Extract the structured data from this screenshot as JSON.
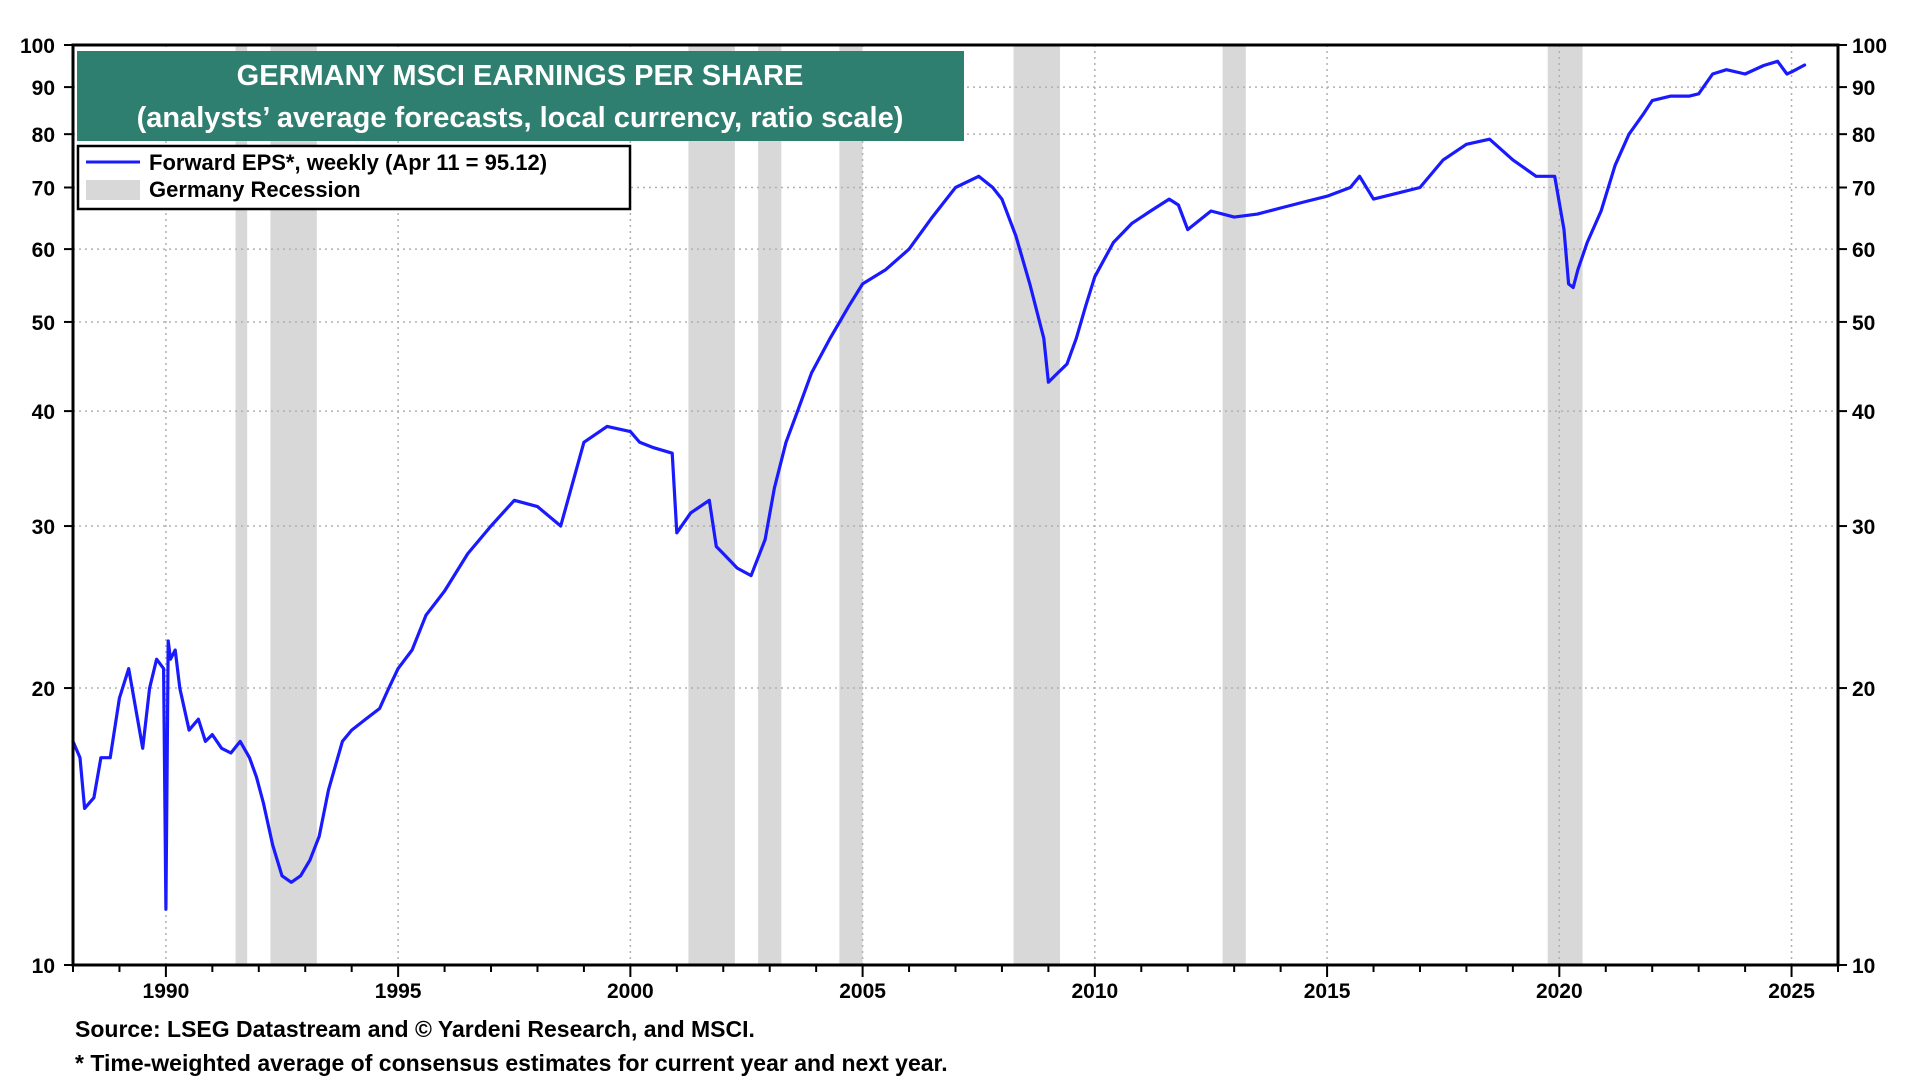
{
  "chart_data": {
    "type": "line",
    "title": "GERMANY MSCI EARNINGS PER SHARE",
    "subtitle": "(analysts’ average forecasts, local currency, ratio scale)",
    "xlabel": "",
    "ylabel": "",
    "yscale": "log",
    "ylim": [
      10,
      100
    ],
    "xlim": [
      1988.0,
      2026.0
    ],
    "grid": true,
    "legend_position": "top-left",
    "y_ticks": [
      "10",
      "20",
      "30",
      "40",
      "50",
      "60",
      "70",
      "80",
      "90",
      "100"
    ],
    "x_ticks": [
      "1990",
      "1995",
      "2000",
      "2005",
      "2010",
      "2015",
      "2020",
      "2025"
    ],
    "series": [
      {
        "name": "Forward EPS*, weekly (Apr 11 = 95.12)",
        "color": "#1a1aff",
        "x": [
          1988.0,
          1988.15,
          1988.25,
          1988.45,
          1988.6,
          1988.8,
          1989.0,
          1989.2,
          1989.35,
          1989.5,
          1989.65,
          1989.8,
          1989.95,
          1990.0,
          1990.05,
          1990.1,
          1990.2,
          1990.3,
          1990.5,
          1990.7,
          1990.85,
          1991.0,
          1991.2,
          1991.4,
          1991.6,
          1991.8,
          1991.95,
          1992.1,
          1992.3,
          1992.5,
          1992.7,
          1992.9,
          1993.1,
          1993.3,
          1993.5,
          1993.8,
          1994.0,
          1994.3,
          1994.6,
          1994.8,
          1995.0,
          1995.3,
          1995.6,
          1996.0,
          1996.5,
          1997.0,
          1997.5,
          1998.0,
          1998.5,
          1999.0,
          1999.5,
          2000.0,
          2000.2,
          2000.5,
          2000.9,
          2001.0,
          2001.3,
          2001.7,
          2001.85,
          2002.0,
          2002.3,
          2002.6,
          2002.9,
          2003.1,
          2003.35,
          2003.6,
          2003.9,
          2004.3,
          2004.7,
          2005.0,
          2005.5,
          2006.0,
          2006.5,
          2007.0,
          2007.5,
          2007.8,
          2008.0,
          2008.3,
          2008.6,
          2008.9,
          2009.0,
          2009.2,
          2009.4,
          2009.6,
          2009.8,
          2010.0,
          2010.4,
          2010.8,
          2011.2,
          2011.6,
          2011.8,
          2012.0,
          2012.5,
          2013.0,
          2013.5,
          2014.0,
          2014.5,
          2015.0,
          2015.5,
          2015.7,
          2016.0,
          2016.5,
          2017.0,
          2017.5,
          2018.0,
          2018.5,
          2019.0,
          2019.5,
          2019.9,
          2020.1,
          2020.2,
          2020.3,
          2020.4,
          2020.6,
          2020.9,
          2021.2,
          2021.5,
          2021.8,
          2022.0,
          2022.4,
          2022.8,
          2023.0,
          2023.3,
          2023.6,
          2024.0,
          2024.4,
          2024.7,
          2024.9,
          2025.0,
          2025.28
        ],
        "values": [
          17.5,
          16.8,
          14.8,
          15.2,
          16.8,
          16.8,
          19.5,
          21.0,
          19.0,
          17.2,
          20.0,
          21.5,
          21.0,
          11.5,
          22.5,
          21.5,
          22.0,
          20.0,
          18.0,
          18.5,
          17.5,
          17.8,
          17.2,
          17.0,
          17.5,
          16.8,
          16.0,
          15.0,
          13.5,
          12.5,
          12.3,
          12.5,
          13.0,
          13.8,
          15.5,
          17.5,
          18.0,
          18.5,
          19.0,
          20.0,
          21.0,
          22.0,
          24.0,
          25.5,
          28.0,
          30.0,
          32.0,
          31.5,
          30.0,
          37.0,
          38.5,
          38.0,
          37.0,
          36.5,
          36.0,
          29.5,
          31.0,
          32.0,
          28.5,
          28.0,
          27.0,
          26.5,
          29.0,
          33.0,
          37.0,
          40.0,
          44.0,
          48.0,
          52.0,
          55.0,
          57.0,
          60.0,
          65.0,
          70.0,
          72.0,
          70.0,
          68.0,
          62.0,
          55.0,
          48.0,
          43.0,
          44.0,
          45.0,
          48.0,
          52.0,
          56.0,
          61.0,
          64.0,
          66.0,
          68.0,
          67.0,
          63.0,
          66.0,
          65.0,
          65.5,
          66.5,
          67.5,
          68.5,
          70.0,
          72.0,
          68.0,
          69.0,
          70.0,
          75.0,
          78.0,
          79.0,
          75.0,
          72.0,
          72.0,
          63.0,
          55.0,
          54.5,
          57.0,
          61.0,
          66.0,
          74.0,
          80.0,
          84.0,
          87.0,
          88.0,
          88.0,
          88.5,
          93.0,
          94.0,
          93.0,
          95.0,
          96.0,
          93.0,
          93.5,
          95.12
        ]
      }
    ],
    "recessions": [
      {
        "name": "Germany Recession",
        "start": 1991.5,
        "end": 1991.75
      },
      {
        "start": 1992.25,
        "end": 1993.25
      },
      {
        "start": 2001.25,
        "end": 2002.25
      },
      {
        "start": 2002.75,
        "end": 2003.25
      },
      {
        "start": 2004.5,
        "end": 2005.0
      },
      {
        "start": 2008.25,
        "end": 2009.25
      },
      {
        "start": 2012.75,
        "end": 2013.25
      },
      {
        "start": 2019.75,
        "end": 2020.5
      }
    ],
    "legend": [
      {
        "label": "Forward EPS*, weekly (Apr 11 = 95.12)",
        "kind": "line",
        "color": "#1a1aff"
      },
      {
        "label": "Germany Recession",
        "kind": "box",
        "color": "#d8d8d8"
      }
    ],
    "colors": {
      "title_bg": "#2e7f70",
      "title_text": "#ffffff",
      "grid": "#b0b0b0",
      "recession": "#d8d8d8",
      "line": "#1a1aff"
    }
  },
  "footer": {
    "source": "Source: LSEG Datastream and © Yardeni Research, and MSCI.",
    "note": "* Time-weighted average of consensus estimates for current year and next year."
  }
}
